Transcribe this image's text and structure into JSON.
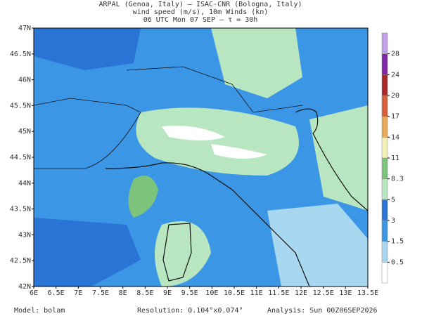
{
  "header": {
    "line1": "ARPAL (Genoa, Italy)  —  ISAC-CNR (Bologna, Italy)",
    "line2": "wind speed (m/s), 10m Winds (kn)",
    "line3": "06 UTC Mon 07 SEP  —  τ = 30h"
  },
  "map": {
    "lon_range": [
      6,
      13.5
    ],
    "lat_range": [
      42,
      47
    ],
    "lon_ticks": [
      {
        "value": 6,
        "label": "6E"
      },
      {
        "value": 6.5,
        "label": "6.5E"
      },
      {
        "value": 7,
        "label": "7E"
      },
      {
        "value": 7.5,
        "label": "7.5E"
      },
      {
        "value": 8,
        "label": "8E"
      },
      {
        "value": 8.5,
        "label": "8.5E"
      },
      {
        "value": 9,
        "label": "9E"
      },
      {
        "value": 9.5,
        "label": "9.5E"
      },
      {
        "value": 10,
        "label": "10E"
      },
      {
        "value": 10.5,
        "label": "10.5E"
      },
      {
        "value": 11,
        "label": "11E"
      },
      {
        "value": 11.5,
        "label": "11.5E"
      },
      {
        "value": 12,
        "label": "12E"
      },
      {
        "value": 12.5,
        "label": "12.5E"
      },
      {
        "value": 13,
        "label": "13E"
      },
      {
        "value": 13.5,
        "label": "13.5E"
      }
    ],
    "lat_ticks": [
      {
        "value": 42,
        "label": "42N"
      },
      {
        "value": 42.5,
        "label": "42.5N"
      },
      {
        "value": 43,
        "label": "43N"
      },
      {
        "value": 43.5,
        "label": "43.5N"
      },
      {
        "value": 44,
        "label": "44N"
      },
      {
        "value": 44.5,
        "label": "44.5N"
      },
      {
        "value": 45,
        "label": "45N"
      },
      {
        "value": 45.5,
        "label": "45.5N"
      },
      {
        "value": 46,
        "label": "46N"
      },
      {
        "value": 46.5,
        "label": "46.5N"
      },
      {
        "value": 47,
        "label": "47N"
      }
    ]
  },
  "colorbar": {
    "levels": [
      0.5,
      1.5,
      3,
      5,
      8.3,
      11,
      14,
      17,
      20,
      24,
      28
    ],
    "colors": [
      "#ffffff",
      "#a8d8f0",
      "#3c96e6",
      "#2a74d6",
      "#b8e6c0",
      "#7cc47c",
      "#f4f0b8",
      "#e8a858",
      "#d86038",
      "#a82828",
      "#8028a8",
      "#c0a0e8"
    ]
  },
  "footer": {
    "model": "Model: bolam",
    "resolution": "Resolution: 0.104°x0.074°",
    "analysis": "Analysis: Sun 00Z06SEP2026"
  }
}
